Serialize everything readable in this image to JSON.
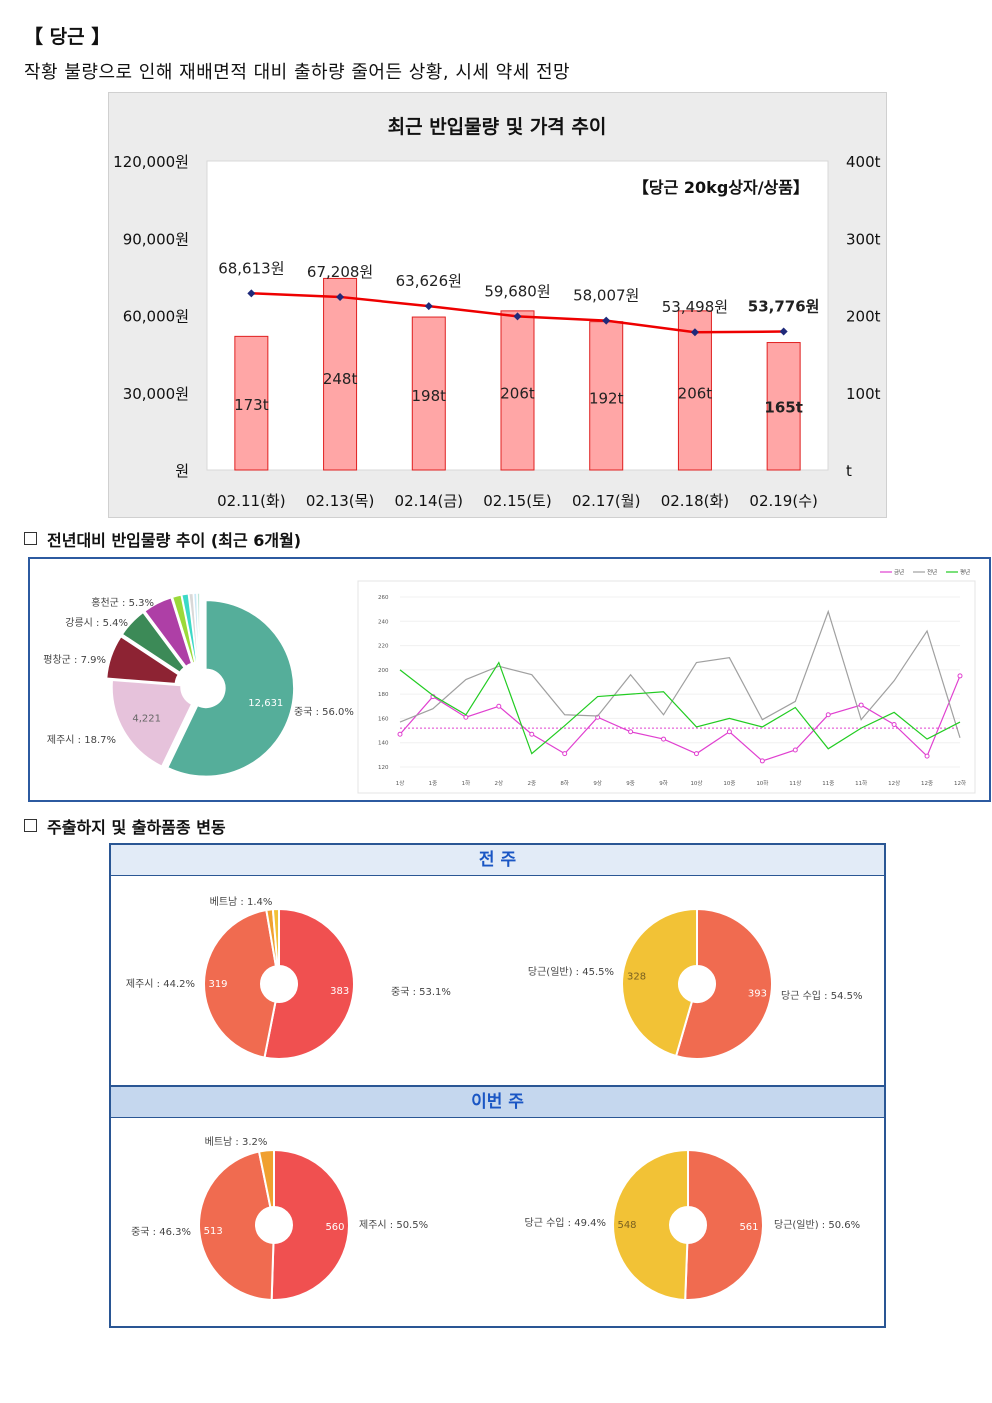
{
  "page": {
    "heading": "【 당근 】",
    "subtitle": "작황 불량으로 인해 재배면적 대비 출하량 줄어든 상황, 시세 약세 전망",
    "section1": "전년대비 반입물량 추이 (최근 6개월)",
    "section2": "주출하지 및 출하품종 변동"
  },
  "colors": {
    "bar_fill": "#ffa6a6",
    "bar_stroke": "#e02020",
    "price_line": "#ee0000",
    "price_marker": "#1f2a7a",
    "pie_teal": "#55ae9a",
    "pie_pink": "#e6c2db",
    "pie_maroon": "#8d2333",
    "pie_green": "#3c8a57",
    "pie_purple": "#ae3fa6",
    "pie_lime": "#9bd93a",
    "pie_cyan": "#3cd9c7",
    "line_this": "#e040d0",
    "line_last": "#a0a0a0",
    "line_avg": "#22cc22",
    "donut_red": "#f05050",
    "donut_orange": "#f06b50",
    "donut_gold": "#f2c236",
    "donut_amber": "#f0a030"
  },
  "chart_data": [
    {
      "type": "bar",
      "title": "최근 반입물량 및 가격 추이",
      "annotation": "【당근 20kg상자/상품】",
      "categories": [
        "02.11(화)",
        "02.13(목)",
        "02.14(금)",
        "02.15(토)",
        "02.17(월)",
        "02.18(화)",
        "02.19(수)"
      ],
      "series": [
        {
          "name": "",
          "axis": "right",
          "kind": "bar",
          "values": [
            173,
            248,
            198,
            206,
            192,
            206,
            165
          ],
          "labels": [
            "173t",
            "248t",
            "198t",
            "206t",
            "192t",
            "206t",
            "165t"
          ]
        },
        {
          "name": "",
          "axis": "left",
          "kind": "line",
          "values": [
            68613,
            67208,
            63626,
            59680,
            58007,
            53498,
            53776
          ],
          "labels": [
            "68,613원",
            "67,208원",
            "63,626원",
            "59,680원",
            "58,007원",
            "53,498원",
            "53,776원"
          ]
        }
      ],
      "y_left": {
        "ylim": [
          0,
          120000
        ],
        "ticks": [
          "원",
          "30,000원",
          "60,000원",
          "90,000원",
          "120,000원"
        ]
      },
      "y_right": {
        "ylim": [
          0,
          400
        ],
        "ticks": [
          "t",
          "100t",
          "200t",
          "300t",
          "400t"
        ]
      }
    },
    {
      "type": "pie",
      "slices": [
        {
          "label": "중국",
          "percent_label": "중국 : 56.0%",
          "value": 12631,
          "value_label": "12,631",
          "percent": 56.0,
          "color": "#55ae9a"
        },
        {
          "label": "제주시",
          "percent_label": "제주시 : 18.7%",
          "value": 4221,
          "value_label": "4,221",
          "percent": 18.7,
          "color": "#e6c2db"
        },
        {
          "label": "평창군",
          "percent_label": "평창군 : 7.9%",
          "percent": 7.9,
          "color": "#8d2333"
        },
        {
          "label": "강릉시",
          "percent_label": "강릉시 : 5.4%",
          "percent": 5.4,
          "color": "#3c8a57"
        },
        {
          "label": "홍천군",
          "percent_label": "홍천군 : 5.3%",
          "percent": 5.3,
          "color": "#ae3fa6"
        },
        {
          "label": "",
          "percent": 1.6,
          "color": "#9bd93a"
        },
        {
          "label": "",
          "percent": 1.2,
          "color": "#3cd9c7"
        },
        {
          "label": "",
          "percent": 0.8,
          "color": "#d8d8d8"
        },
        {
          "label": "",
          "percent": 0.6,
          "color": "#c9e8f6"
        },
        {
          "label": "",
          "percent": 0.5,
          "color": "#bfe7d8"
        }
      ]
    },
    {
      "type": "line",
      "categories": [
        "1상",
        "1중",
        "1하",
        "2상",
        "2중",
        "8하",
        "9상",
        "9중",
        "9하",
        "10상",
        "10중",
        "10하",
        "11상",
        "11중",
        "11하",
        "12상",
        "12중",
        "12하"
      ],
      "series": [
        {
          "name": "금년",
          "values": [
            147,
            178,
            161,
            170,
            147,
            131,
            161,
            149,
            143,
            131,
            149,
            125,
            134,
            163,
            171,
            155,
            129,
            195
          ]
        },
        {
          "name": "전년",
          "values": [
            157,
            168,
            192,
            203,
            196,
            163,
            162,
            196,
            163,
            206,
            210,
            159,
            174,
            248,
            159,
            191,
            232,
            144
          ]
        },
        {
          "name": "평년",
          "values": [
            200,
            179,
            163,
            206,
            131,
            154,
            178,
            180,
            182,
            153,
            160,
            153,
            169,
            135,
            152,
            165,
            143,
            157
          ]
        }
      ],
      "reference_line": 152,
      "ylim": [
        120,
        260
      ],
      "ticks": [
        "120",
        "140",
        "160",
        "180",
        "200",
        "220",
        "240",
        "260"
      ]
    },
    {
      "type": "pie",
      "title": "전 주",
      "slices": [
        {
          "label": "중국",
          "percent_label": "중국 : 53.1%",
          "value": 383,
          "value_label": "383",
          "percent": 53.1,
          "color": "#f05050"
        },
        {
          "label": "제주시",
          "percent_label": "제주시 : 44.2%",
          "value": 319,
          "value_label": "319",
          "percent": 44.2,
          "color": "#f06b50"
        },
        {
          "label": "베트남",
          "percent_label": "베트남 : 1.4%",
          "percent": 1.4,
          "color": "#f0a030"
        },
        {
          "label": "",
          "percent": 1.3,
          "color": "#f2c236"
        }
      ]
    },
    {
      "type": "pie",
      "title": "전 주",
      "slices": [
        {
          "label": "당근 수입",
          "percent_label": "당근 수입 : 54.5%",
          "value": 393,
          "value_label": "393",
          "percent": 54.5,
          "color": "#f06b50"
        },
        {
          "label": "당근(일반)",
          "percent_label": "당근(일반) : 45.5%",
          "value": 328,
          "value_label": "328",
          "percent": 45.5,
          "color": "#f2c236"
        }
      ]
    },
    {
      "type": "pie",
      "title": "이번 주",
      "slices": [
        {
          "label": "제주시",
          "percent_label": "제주시 : 50.5%",
          "value": 560,
          "value_label": "560",
          "percent": 50.5,
          "color": "#f05050"
        },
        {
          "label": "중국",
          "percent_label": "중국 : 46.3%",
          "value": 513,
          "value_label": "513",
          "percent": 46.3,
          "color": "#f06b50"
        },
        {
          "label": "베트남",
          "percent_label": "베트남 : 3.2%",
          "percent": 3.2,
          "color": "#f0a030"
        }
      ]
    },
    {
      "type": "pie",
      "title": "이번 주",
      "slices": [
        {
          "label": "당근(일반)",
          "percent_label": "당근(일반) : 50.6%",
          "value": 561,
          "value_label": "561",
          "percent": 50.6,
          "color": "#f06b50"
        },
        {
          "label": "당근 수입",
          "percent_label": "당근 수입 : 49.4%",
          "value": 548,
          "value_label": "548",
          "percent": 49.4,
          "color": "#f2c236"
        }
      ]
    }
  ]
}
